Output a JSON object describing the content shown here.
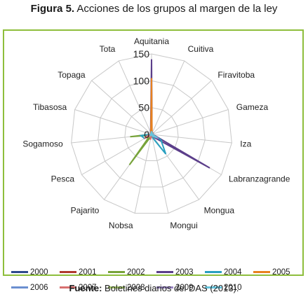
{
  "figure": {
    "title_lead": "Figura 5.",
    "title_rest": " Acciones de los grupos al margen de la ley",
    "source_lead": "Fuente:",
    "source_rest": " Boletines diarios del DAS (2013)."
  },
  "chart_data": {
    "type": "radar",
    "title": "",
    "categories": [
      "Aquitania",
      "Cuitiva",
      "Firavitoba",
      "Gameza",
      "Iza",
      "Labranzagrande",
      "Mongua",
      "Mongui",
      "Nobsa",
      "Pajarito",
      "Pesca",
      "Sogamoso",
      "Tibasosa",
      "Topaga",
      "Tota"
    ],
    "rlim": [
      0,
      150
    ],
    "ticks": [
      0,
      50,
      100,
      150
    ],
    "grid": true,
    "legend_position": "bottom",
    "series": [
      {
        "name": "2000",
        "color": "#2e4a8c",
        "values": [
          8,
          2,
          3,
          1,
          2,
          20,
          5,
          2,
          1,
          2,
          1,
          2,
          1,
          1,
          3
        ]
      },
      {
        "name": "2001",
        "color": "#b03a2e",
        "values": [
          3,
          1,
          1,
          0,
          1,
          5,
          3,
          1,
          1,
          1,
          0,
          1,
          0,
          0,
          1
        ]
      },
      {
        "name": "2002",
        "color": "#77a33a",
        "values": [
          10,
          1,
          2,
          1,
          2,
          15,
          5,
          1,
          3,
          70,
          3,
          40,
          1,
          0,
          2
        ]
      },
      {
        "name": "2003",
        "color": "#5b3e8a",
        "values": [
          140,
          2,
          3,
          2,
          3,
          125,
          6,
          2,
          1,
          2,
          2,
          3,
          1,
          1,
          4
        ]
      },
      {
        "name": "2004",
        "color": "#2aa0c0",
        "values": [
          10,
          2,
          2,
          1,
          2,
          20,
          45,
          5,
          1,
          2,
          15,
          20,
          1,
          0,
          2
        ]
      },
      {
        "name": "2005",
        "color": "#e8821f",
        "values": [
          105,
          2,
          3,
          1,
          2,
          10,
          5,
          2,
          1,
          2,
          1,
          2,
          1,
          1,
          3
        ]
      },
      {
        "name": "2006",
        "color": "#6b8fd0",
        "values": [
          5,
          1,
          2,
          1,
          1,
          10,
          3,
          1,
          1,
          2,
          1,
          2,
          1,
          1,
          2
        ]
      },
      {
        "name": "2007",
        "color": "#d87070",
        "values": [
          5,
          1,
          2,
          1,
          1,
          8,
          3,
          1,
          10,
          3,
          15,
          5,
          1,
          0,
          2
        ]
      },
      {
        "name": "2008",
        "color": "#a6c96a",
        "values": [
          4,
          1,
          1,
          1,
          1,
          6,
          2,
          1,
          1,
          2,
          1,
          2,
          1,
          0,
          1
        ]
      },
      {
        "name": "2009",
        "color": "#9a86c4",
        "values": [
          5,
          1,
          2,
          1,
          1,
          15,
          4,
          1,
          1,
          2,
          1,
          2,
          1,
          0,
          2
        ]
      },
      {
        "name": "2010",
        "color": "#66c3db",
        "values": [
          6,
          1,
          2,
          1,
          2,
          12,
          4,
          1,
          1,
          2,
          1,
          2,
          1,
          0,
          2
        ]
      }
    ]
  }
}
